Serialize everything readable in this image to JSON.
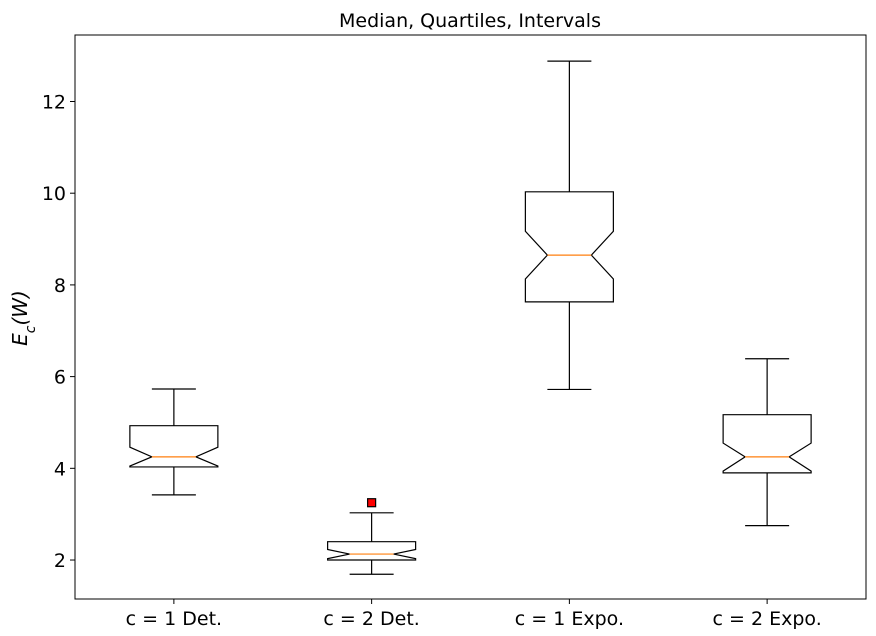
{
  "chart_data": {
    "type": "boxplot",
    "title": "Median, Quartiles, Intervals",
    "xlabel": "",
    "ylabel": "E_c(W)",
    "ylim": [
      1.15,
      13.45
    ],
    "yticks": [
      2,
      4,
      6,
      8,
      10,
      12
    ],
    "notched": true,
    "grid": false,
    "categories": [
      "c = 1 Det.",
      "c = 2 Det.",
      "c = 1 Expo.",
      "c = 2 Expo."
    ],
    "boxes": [
      {
        "whisker_low": 3.42,
        "q1": 4.03,
        "median": 4.25,
        "q3": 4.93,
        "whisker_high": 5.73,
        "notch_low": 4.05,
        "notch_high": 4.46,
        "fliers": []
      },
      {
        "whisker_low": 1.69,
        "q1": 2.0,
        "median": 2.13,
        "q3": 2.4,
        "whisker_high": 3.03,
        "notch_low": 2.03,
        "notch_high": 2.23,
        "fliers": [
          3.25
        ]
      },
      {
        "whisker_low": 5.72,
        "q1": 7.63,
        "median": 8.65,
        "q3": 10.03,
        "whisker_high": 12.88,
        "notch_low": 8.13,
        "notch_high": 9.17,
        "fliers": []
      },
      {
        "whisker_low": 2.75,
        "q1": 3.9,
        "median": 4.25,
        "q3": 5.17,
        "whisker_high": 6.39,
        "notch_low": 3.94,
        "notch_high": 4.55,
        "fliers": []
      }
    ],
    "colors": {
      "median": "#ff7f0e",
      "flier": "#ff0000",
      "box": "#000000"
    }
  }
}
